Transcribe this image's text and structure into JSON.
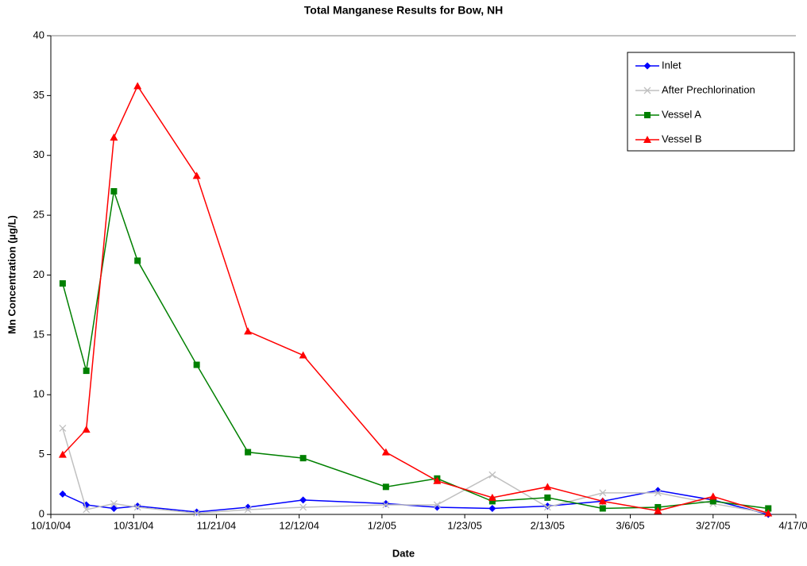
{
  "chart_data": {
    "type": "line",
    "title": "Total Manganese Results for Bow, NH",
    "x_label": "Date",
    "y_label": "Mn Concentration (µg/L)",
    "x": [
      "10/13/04",
      "10/19/04",
      "10/26/04",
      "11/1/04",
      "11/16/04",
      "11/29/04",
      "12/13/04",
      "1/3/05",
      "1/16/05",
      "1/30/05",
      "2/13/05",
      "2/27/05",
      "3/13/05",
      "3/27/05",
      "4/10/05"
    ],
    "series": [
      {
        "name": "Inlet",
        "color": "#0000ff",
        "marker": "diamond",
        "values": [
          1.7,
          0.8,
          0.5,
          0.7,
          0.2,
          0.6,
          1.2,
          0.9,
          0.6,
          0.5,
          0.7,
          1.1,
          2.0,
          1.2,
          0.0
        ]
      },
      {
        "name": "After Prechlorination",
        "color": "#c0c0c0",
        "marker": "x",
        "values": [
          7.2,
          0.4,
          0.9,
          0.6,
          0.1,
          0.4,
          0.6,
          0.8,
          0.8,
          3.3,
          0.6,
          1.8,
          1.8,
          0.9,
          0.1
        ]
      },
      {
        "name": "Vessel A",
        "color": "#008000",
        "marker": "square",
        "values": [
          19.3,
          12.0,
          27.0,
          21.2,
          12.5,
          5.2,
          4.7,
          2.3,
          3.0,
          1.1,
          1.4,
          0.5,
          0.6,
          1.1,
          0.5
        ]
      },
      {
        "name": "Vessel B",
        "color": "#ff0000",
        "marker": "triangle",
        "values": [
          5.0,
          7.1,
          31.5,
          35.8,
          28.3,
          15.3,
          13.3,
          5.2,
          2.8,
          1.4,
          2.3,
          1.1,
          0.3,
          1.5,
          0.1
        ]
      }
    ],
    "xlim": [
      "10/10/04",
      "4/17/05"
    ],
    "xticks": [
      "10/10/04",
      "10/31/04",
      "11/21/04",
      "12/12/04",
      "1/2/05",
      "1/23/05",
      "2/13/05",
      "3/6/05",
      "3/27/05",
      "4/17/05"
    ],
    "ylim": [
      0,
      40
    ],
    "yticks": [
      0,
      5,
      10,
      15,
      20,
      25,
      30,
      35,
      40
    ],
    "legend": "top-right"
  }
}
